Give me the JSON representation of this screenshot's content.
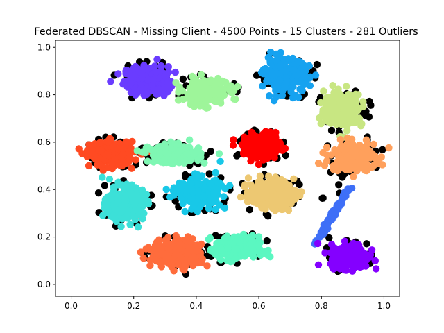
{
  "chart_data": {
    "type": "scatter",
    "title": "Federated DBSCAN - Missing Client - 4500 Points - 15 Clusters - 281 Outliers",
    "xlabel": "",
    "ylabel": "",
    "xlim": [
      -0.05,
      1.05
    ],
    "ylim": [
      -0.05,
      1.03
    ],
    "x_ticks": [
      "0.0",
      "0.2",
      "0.4",
      "0.6",
      "0.8",
      "1.0"
    ],
    "y_ticks": [
      "0.0",
      "0.2",
      "0.4",
      "0.6",
      "0.8",
      "1.0"
    ],
    "grid": false,
    "legend": "none",
    "outlier_color": "#000000",
    "clusters": [
      {
        "cx": 0.24,
        "cy": 0.86,
        "sx": 0.035,
        "sy": 0.03,
        "color": "#6a3cff"
      },
      {
        "cx": 0.43,
        "cy": 0.81,
        "sx": 0.035,
        "sy": 0.025,
        "color": "#9ef59a"
      },
      {
        "cx": 0.69,
        "cy": 0.88,
        "sx": 0.035,
        "sy": 0.035,
        "color": "#16a2f0"
      },
      {
        "cx": 0.87,
        "cy": 0.74,
        "sx": 0.03,
        "sy": 0.035,
        "color": "#c8e682"
      },
      {
        "cx": 0.13,
        "cy": 0.55,
        "sx": 0.035,
        "sy": 0.025,
        "color": "#ff4a22"
      },
      {
        "cx": 0.33,
        "cy": 0.55,
        "sx": 0.04,
        "sy": 0.018,
        "color": "#7ff7b3"
      },
      {
        "cx": 0.61,
        "cy": 0.58,
        "sx": 0.03,
        "sy": 0.025,
        "color": "#ff0000"
      },
      {
        "cx": 0.9,
        "cy": 0.54,
        "sx": 0.035,
        "sy": 0.03,
        "color": "#ffa05c"
      },
      {
        "cx": 0.17,
        "cy": 0.34,
        "sx": 0.03,
        "sy": 0.035,
        "color": "#3ce0d8"
      },
      {
        "cx": 0.41,
        "cy": 0.39,
        "sx": 0.035,
        "sy": 0.03,
        "color": "#18c8e8"
      },
      {
        "cx": 0.64,
        "cy": 0.38,
        "sx": 0.035,
        "sy": 0.03,
        "color": "#edc872"
      },
      {
        "cx": 0.84,
        "cy": 0.3,
        "sx": 0.012,
        "sy": 0.055,
        "color": "#3e6ff7"
      },
      {
        "cx": 0.34,
        "cy": 0.13,
        "sx": 0.04,
        "sy": 0.03,
        "color": "#ff6c3c"
      },
      {
        "cx": 0.53,
        "cy": 0.15,
        "sx": 0.035,
        "sy": 0.025,
        "color": "#5bf7c1"
      },
      {
        "cx": 0.89,
        "cy": 0.12,
        "sx": 0.03,
        "sy": 0.025,
        "color": "#8400ff"
      }
    ]
  }
}
